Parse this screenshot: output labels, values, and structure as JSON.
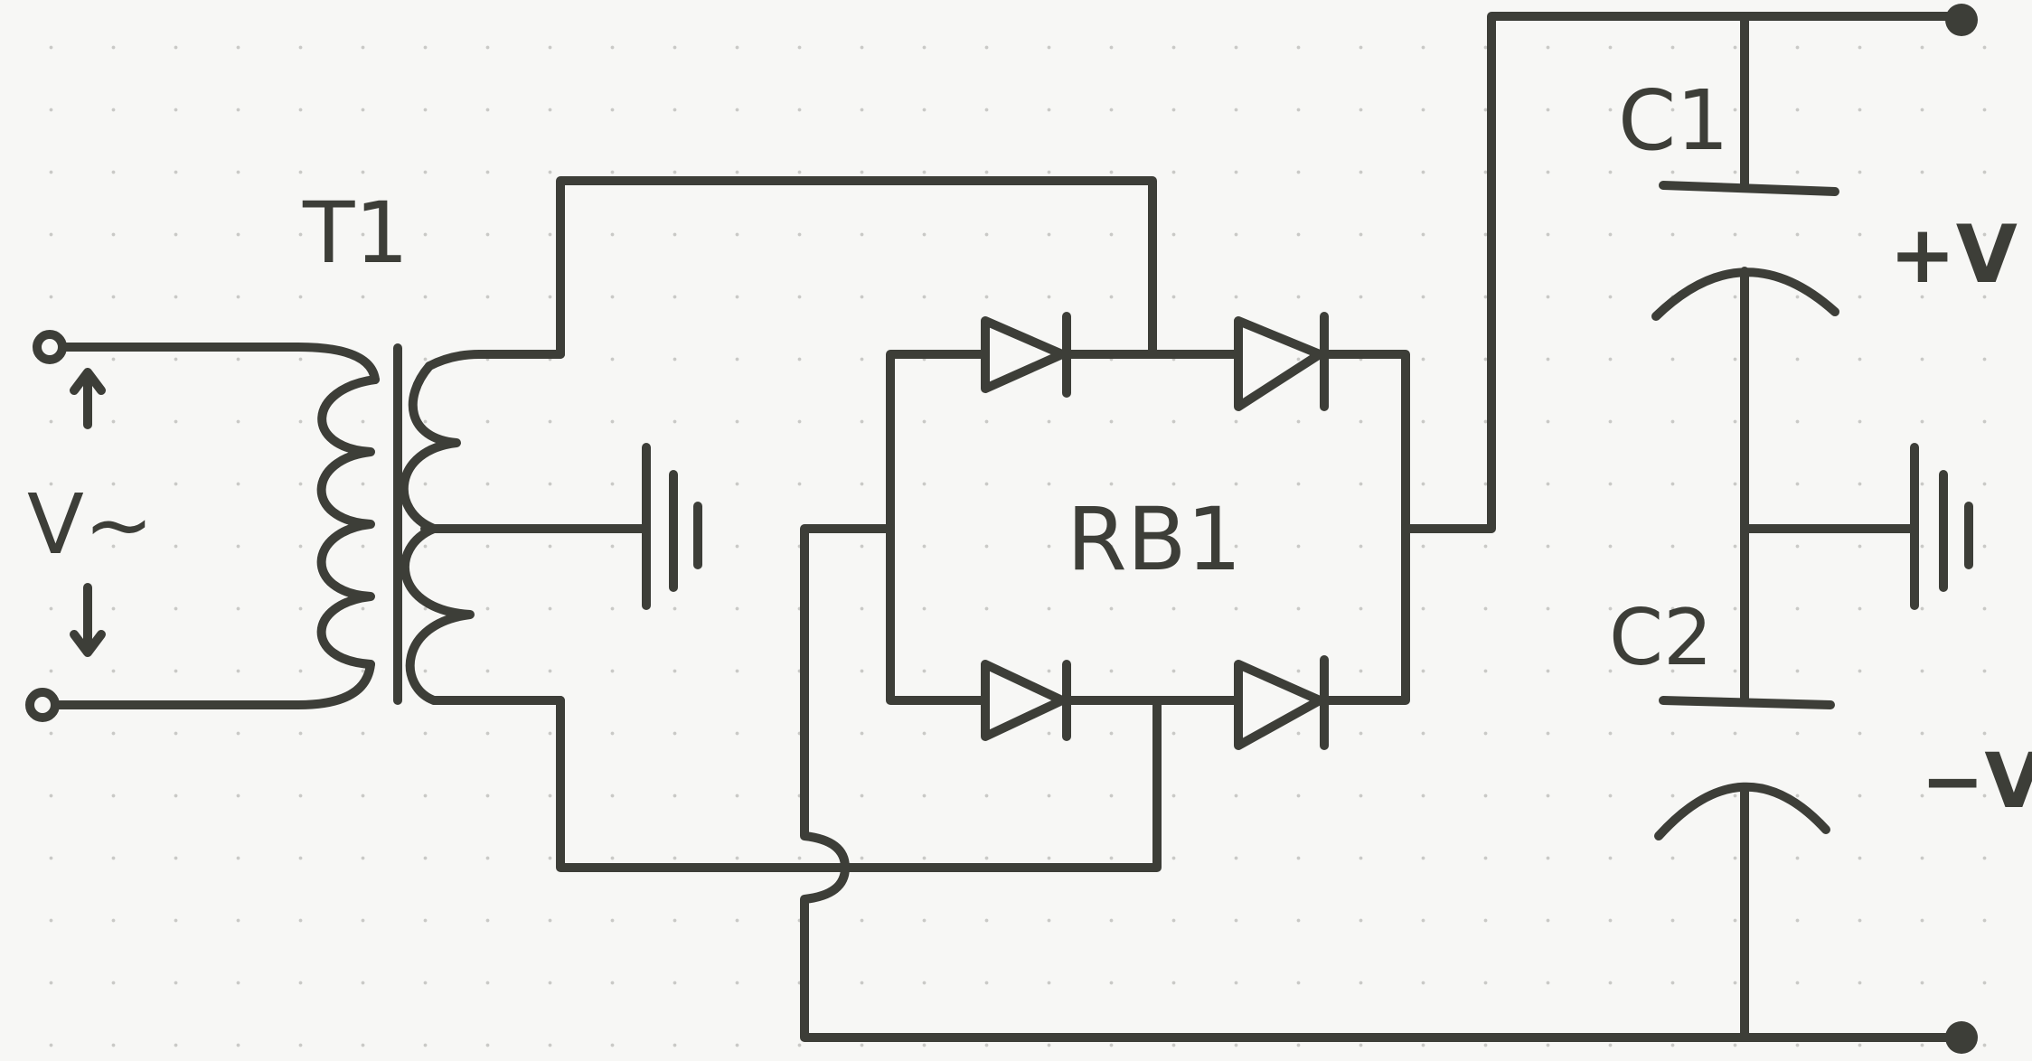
{
  "labels": {
    "transformer": "T1",
    "input_voltage": "V~",
    "bridge": "RB1",
    "cap1": "C1",
    "cap2": "C2",
    "positive": "+V",
    "negative": "−V"
  },
  "colors": {
    "ink": "#3d3e38",
    "positive": "#e8164a",
    "negative": "#1f8ee8",
    "paper": "#f7f7f5"
  }
}
